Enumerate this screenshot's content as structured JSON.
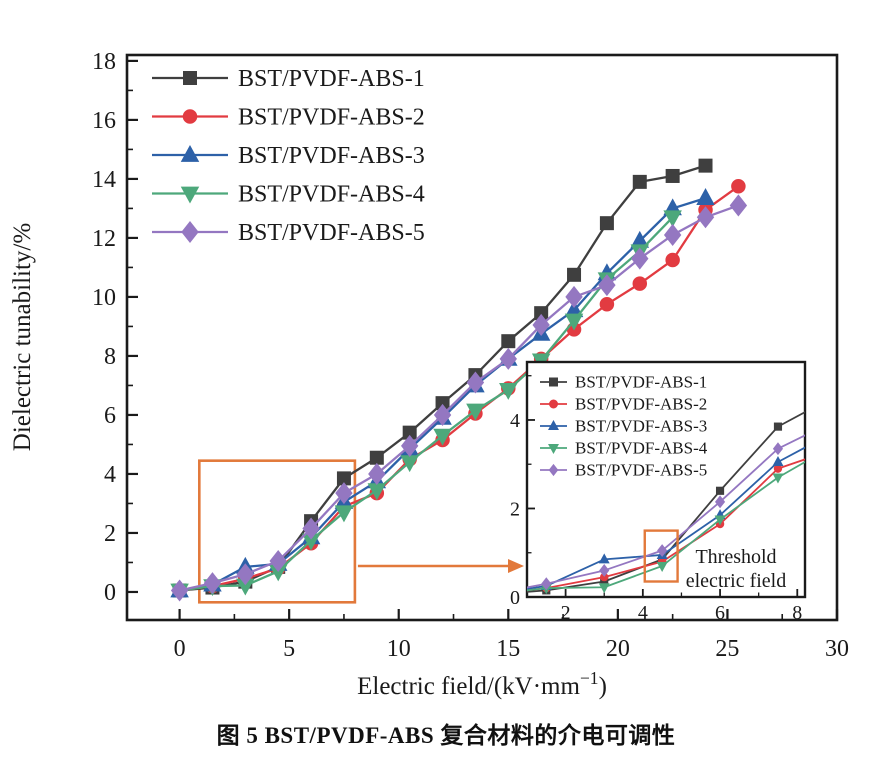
{
  "figure": {
    "caption": "图 5  BST/PVDF-ABS 复合材料的介电可调性"
  },
  "chart_data": {
    "type": "line",
    "xlabel": {
      "pre": "Electric field/(kV·mm",
      "sup": "−1",
      "post": ")"
    },
    "ylabel": "Dielectric tunability/%",
    "xlim": [
      -2.4,
      30
    ],
    "ylim": [
      -0.95,
      18.2
    ],
    "xticks_major": [
      0,
      5,
      10,
      15,
      20,
      25,
      30
    ],
    "xticks_minor": [
      2.5,
      7.5,
      12.5,
      17.5,
      22.5,
      27.5
    ],
    "yticks_major": [
      0,
      2,
      4,
      6,
      8,
      10,
      12,
      14,
      16,
      18
    ],
    "yticks_minor": [
      1,
      3,
      5,
      7,
      9,
      11,
      13,
      15,
      17
    ],
    "x": [
      0,
      1.5,
      3,
      4.5,
      6,
      7.5,
      9,
      10.5,
      12,
      13.5,
      15,
      16.5,
      18,
      19.5,
      21,
      22.5,
      24,
      25.5
    ],
    "series": [
      {
        "name": "BST/PVDF-ABS-1",
        "marker": "square",
        "color": "#3f3f3f",
        "msize": 13,
        "values": [
          0.05,
          0.15,
          0.35,
          0.85,
          2.4,
          3.85,
          4.55,
          5.4,
          6.4,
          7.35,
          8.5,
          9.45,
          10.75,
          12.5,
          13.9,
          14.1,
          14.45
        ]
      },
      {
        "name": "BST/PVDF-ABS-2",
        "marker": "circle",
        "color": "#e23b41",
        "msize": 13.5,
        "values": [
          0.05,
          0.2,
          0.45,
          0.8,
          1.65,
          2.9,
          3.35,
          4.5,
          5.15,
          6.05,
          6.9,
          7.9,
          8.9,
          9.75,
          10.45,
          11.25,
          12.95,
          13.75
        ]
      },
      {
        "name": "BST/PVDF-ABS-3",
        "marker": "triangle-up",
        "color": "#2d61a8",
        "msize": 14.5,
        "values": [
          0.05,
          0.25,
          0.85,
          0.95,
          1.85,
          3.05,
          3.75,
          4.85,
          5.9,
          7.0,
          7.9,
          8.75,
          9.55,
          10.8,
          11.9,
          13.0,
          13.35
        ]
      },
      {
        "name": "BST/PVDF-ABS-4",
        "marker": "triangle-down",
        "color": "#4da87b",
        "msize": 14.5,
        "values": [
          0.05,
          0.2,
          0.22,
          0.7,
          1.75,
          2.7,
          3.45,
          4.4,
          5.3,
          6.15,
          6.85,
          7.85,
          9.2,
          10.6,
          11.55,
          12.7
        ]
      },
      {
        "name": "BST/PVDF-ABS-5",
        "marker": "diamond",
        "color": "#9477c1",
        "msize": 15.5,
        "values": [
          0.05,
          0.3,
          0.6,
          1.05,
          2.15,
          3.35,
          4.0,
          4.95,
          6.0,
          7.1,
          7.9,
          9.05,
          10.0,
          10.4,
          11.3,
          12.1,
          12.7,
          13.1
        ]
      }
    ],
    "zoom_box": {
      "x": [
        0.9,
        8.0
      ],
      "y": [
        -0.35,
        4.45
      ],
      "arrow_y": 0.88
    },
    "accent_color": "#e2793b",
    "inset": {
      "xlim": [
        1.0,
        8.2
      ],
      "ylim": [
        0,
        5.31
      ],
      "xticks_major": [
        2,
        4,
        6,
        8
      ],
      "xticks_minor": [
        3,
        5,
        7
      ],
      "yticks_major": [
        0,
        2,
        4
      ],
      "yticks_minor": [
        1,
        3,
        5
      ],
      "threshold_box": {
        "x": [
          4.05,
          4.9
        ],
        "y": [
          0.35,
          1.5
        ]
      },
      "annotation_line1": "Threshold",
      "annotation_line2": "electric field"
    }
  }
}
